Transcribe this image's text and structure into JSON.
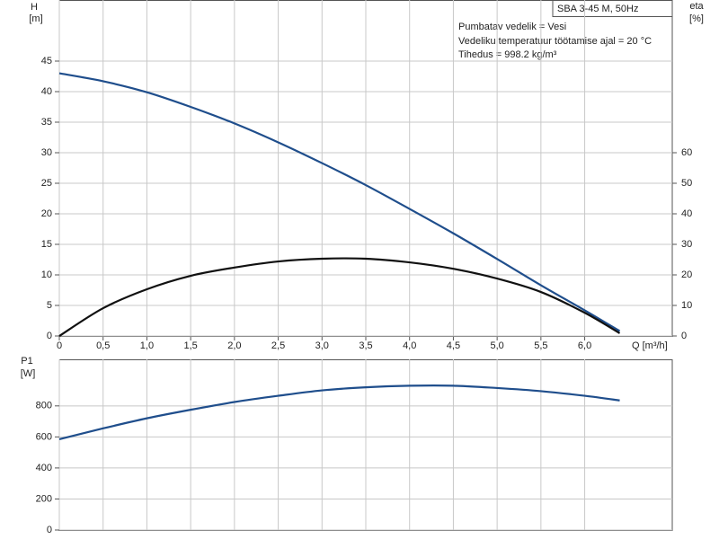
{
  "chart_data": [
    {
      "type": "line",
      "title": "SBA 3-45 M, 50Hz",
      "annotations": [
        "Pumbatav vedelik = Vesi",
        "Vedeliku temperatuur töötamise ajal = 20 °C",
        "Tihedus = 998.2 kg/m³"
      ],
      "ylabel": "H",
      "yunit": "[m]",
      "y2label": "eta",
      "y2unit": "[%]",
      "xlabel": "Q [m³/h]",
      "x": [
        0,
        0.5,
        1.0,
        1.5,
        2.0,
        2.5,
        3.0,
        3.5,
        4.0,
        4.5,
        5.0,
        5.5,
        6.0,
        6.4
      ],
      "series": [
        {
          "color": "#1f4e8c",
          "values": [
            43,
            41.7,
            39.9,
            37.5,
            34.8,
            31.7,
            28.3,
            24.7,
            20.8,
            16.8,
            12.6,
            8.3,
            4.2,
            0.8
          ]
        },
        {
          "color": "#111111",
          "axis": "y2",
          "values": [
            0,
            9.1,
            15.3,
            19.7,
            22.4,
            24.4,
            25.3,
            25.3,
            24.1,
            22,
            18.8,
            14.4,
            7.6,
            0.9
          ]
        }
      ],
      "xlim": [
        0,
        7
      ],
      "xticks": [
        0,
        {
          "value": 0.5,
          "label": "0,5"
        },
        {
          "value": 1,
          "label": "1,0"
        },
        {
          "value": 1.5,
          "label": "1,5"
        },
        {
          "value": 2,
          "label": "2,0"
        },
        {
          "value": 2.5,
          "label": "2,5"
        },
        {
          "value": 3,
          "label": "3,0"
        },
        {
          "value": 3.5,
          "label": "3,5"
        },
        {
          "value": 4,
          "label": "4,0"
        },
        {
          "value": 4.5,
          "label": "4,5"
        },
        {
          "value": 5,
          "label": "5,0"
        },
        {
          "value": 5.5,
          "label": "5,5"
        },
        {
          "value": 6,
          "label": "6,0"
        }
      ],
      "ylim": [
        0,
        55
      ],
      "yticks": [
        0,
        5,
        10,
        15,
        20,
        25,
        30,
        35,
        40,
        45
      ],
      "y2lim": [
        0,
        110
      ],
      "y2ticks": [
        0,
        10,
        20,
        30,
        40,
        50,
        60
      ],
      "grid": true
    },
    {
      "type": "line",
      "ylabel": "P1",
      "yunit": "[W]",
      "x": [
        0,
        0.5,
        1.0,
        1.5,
        2.0,
        2.5,
        3.0,
        3.5,
        4.0,
        4.5,
        5.0,
        5.5,
        6.0,
        6.4
      ],
      "series": [
        {
          "color": "#1f4e8c",
          "values": [
            585,
            655,
            720,
            775,
            825,
            865,
            900,
            920,
            930,
            930,
            915,
            895,
            865,
            835
          ]
        }
      ],
      "xlim": [
        0,
        7
      ],
      "ylim": [
        0,
        1100
      ],
      "yticks": [
        0,
        200,
        400,
        600,
        800
      ],
      "grid": true
    }
  ]
}
